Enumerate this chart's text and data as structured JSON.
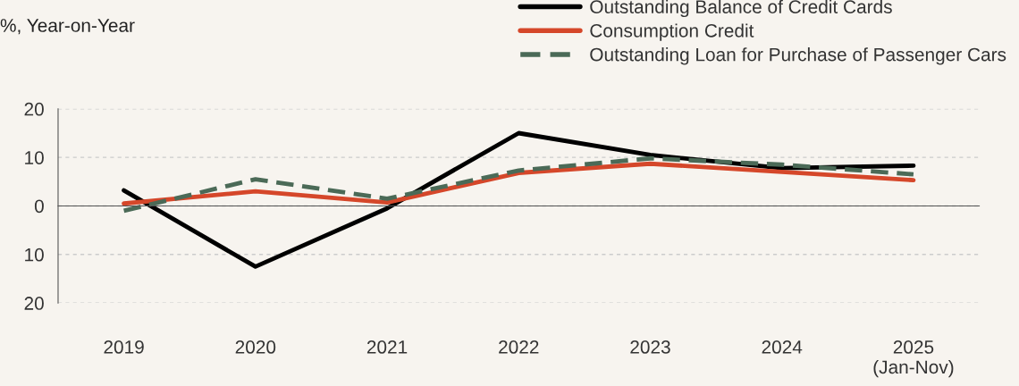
{
  "chart_data": {
    "type": "line",
    "ylabel": "%, Year-on-Year",
    "categories": [
      "2019",
      "2020",
      "2021",
      "2022",
      "2023",
      "2024",
      "2025\n(Jan-Nov)"
    ],
    "series": [
      {
        "name": "Outstanding Balance of Credit Cards",
        "color": "#000000",
        "values": [
          3.2,
          -12.5,
          -0.5,
          15.0,
          10.5,
          7.8,
          8.3
        ]
      },
      {
        "name": "Consumption Credit",
        "color": "#d5472a",
        "values": [
          0.5,
          3.0,
          0.7,
          6.8,
          8.7,
          7.0,
          5.3
        ]
      },
      {
        "name": "Outstanding Loan for Purchase of Passenger Cars",
        "color": "#4b6a57",
        "line_style": "dashed",
        "values": [
          -1.0,
          5.5,
          1.5,
          7.3,
          9.8,
          8.5,
          6.5
        ]
      }
    ],
    "ylim": [
      -20,
      20
    ],
    "yticks": [
      {
        "value": -20,
        "label": "20"
      },
      {
        "value": -10,
        "label": "10"
      },
      0,
      10,
      20
    ],
    "grid": "y",
    "legend": "top",
    "marker": "none"
  }
}
